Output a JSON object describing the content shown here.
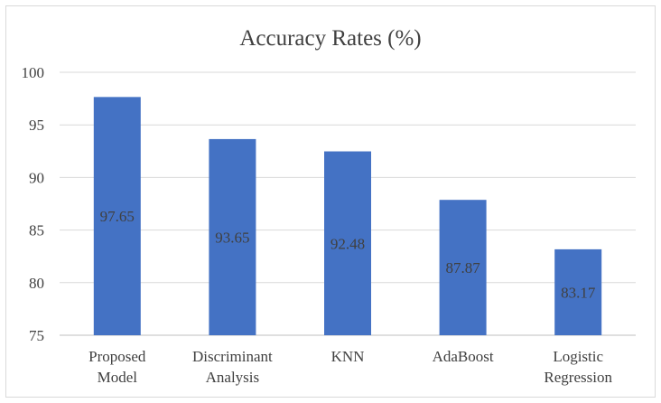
{
  "chart_data": {
    "type": "bar",
    "title": "Accuracy Rates (%)",
    "xlabel": "",
    "ylabel": "",
    "categories": [
      [
        "Proposed",
        "Model"
      ],
      [
        "Discriminant",
        "Analysis"
      ],
      [
        "KNN"
      ],
      [
        "AdaBoost"
      ],
      [
        "Logistic",
        "Regression"
      ]
    ],
    "values": [
      97.65,
      93.65,
      92.48,
      87.87,
      83.17
    ],
    "data_labels": [
      "97.65",
      "93.65",
      "92.48",
      "87.87",
      "83.17"
    ],
    "ylim": [
      75,
      100
    ],
    "yticks": [
      75,
      80,
      85,
      90,
      95,
      100
    ],
    "grid": true,
    "legend": "none",
    "bar_color": "#4472c4"
  }
}
